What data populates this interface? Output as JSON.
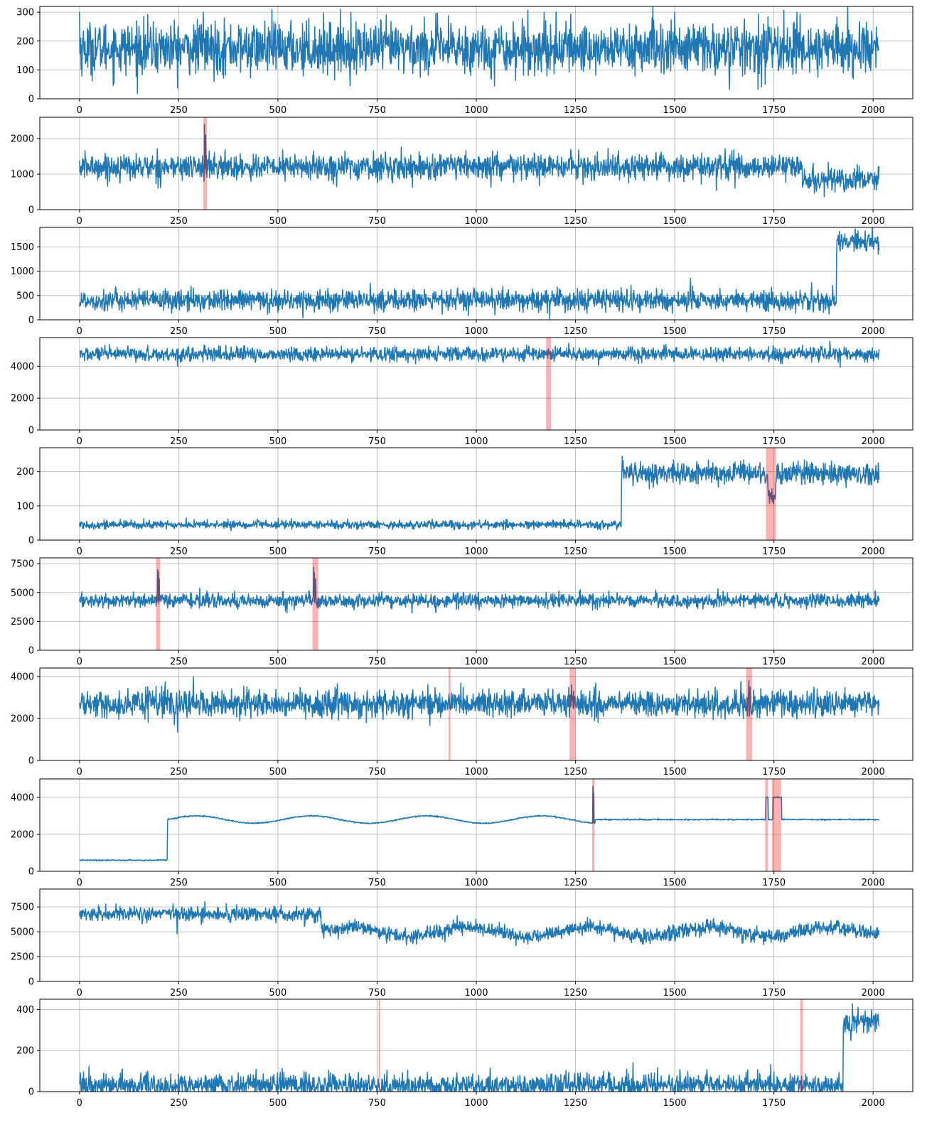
{
  "chart_data": [
    {
      "type": "line",
      "series": [
        {
          "values_spec": {
            "n": 2016,
            "base": 175,
            "noise": 45,
            "spikes": [
              [
                0,
                300
              ],
              [
                312,
                300
              ],
              [
                1171,
                300
              ],
              [
                1500,
                300
              ],
              [
                1808,
                300
              ]
            ]
          }
        }
      ],
      "xlim": [
        -100,
        2100
      ],
      "ylim": [
        0,
        320
      ],
      "xticks": [
        0,
        250,
        500,
        750,
        1000,
        1250,
        1500,
        1750,
        2000
      ],
      "yticks": [
        0,
        100,
        200,
        300
      ],
      "anomalies": []
    },
    {
      "type": "line",
      "series": [
        {
          "values_spec": {
            "n": 2016,
            "segments": [
              [
                0,
                1820,
                1200
              ],
              [
                1820,
                2016,
                850
              ]
            ],
            "noise": 180,
            "spikes": [
              [
                315,
                2400
              ],
              [
                318,
                2100
              ]
            ]
          }
        }
      ],
      "xlim": [
        -100,
        2100
      ],
      "ylim": [
        0,
        2600
      ],
      "xticks": [
        0,
        250,
        500,
        750,
        1000,
        1250,
        1500,
        1750,
        2000
      ],
      "yticks": [
        0,
        1000,
        2000
      ],
      "anomalies": [
        [
          312,
          321
        ]
      ]
    },
    {
      "type": "line",
      "series": [
        {
          "values_spec": {
            "n": 2016,
            "segments": [
              [
                0,
                1908,
                400
              ],
              [
                1908,
                2016,
                1600
              ]
            ],
            "noise": 110,
            "spikes": []
          }
        }
      ],
      "xlim": [
        -100,
        2100
      ],
      "ylim": [
        0,
        1900
      ],
      "xticks": [
        0,
        250,
        500,
        750,
        1000,
        1250,
        1500,
        1750,
        2000
      ],
      "yticks": [
        0,
        500,
        1000,
        1500
      ],
      "anomalies": []
    },
    {
      "type": "line",
      "series": [
        {
          "values_spec": {
            "n": 2016,
            "base": 4750,
            "noise": 220,
            "spikes": [
              [
                1182,
                5100
              ]
            ]
          }
        }
      ],
      "xlim": [
        -100,
        2100
      ],
      "ylim": [
        0,
        5800
      ],
      "xticks": [
        0,
        250,
        500,
        750,
        1000,
        1250,
        1500,
        1750,
        2000
      ],
      "yticks": [
        0,
        2000,
        4000
      ],
      "anomalies": [
        [
          1176,
          1188
        ]
      ]
    },
    {
      "type": "line",
      "series": [
        {
          "values_spec": {
            "n": 2016,
            "segments": [
              [
                0,
                1366,
                45
              ],
              [
                1366,
                2016,
                195
              ],
              [
                1735,
                1755,
                130
              ]
            ],
            "noise": 6,
            "noise2": [
              1366,
              16
            ],
            "spikes": [
              [
                1368,
                245
              ]
            ]
          }
        }
      ],
      "xlim": [
        -100,
        2100
      ],
      "ylim": [
        0,
        270
      ],
      "xticks": [
        0,
        250,
        500,
        750,
        1000,
        1250,
        1500,
        1750,
        2000
      ],
      "yticks": [
        0,
        100,
        200
      ],
      "anomalies": [
        [
          1730,
          1755
        ]
      ]
    },
    {
      "type": "line",
      "series": [
        {
          "values_spec": {
            "n": 2016,
            "base": 4300,
            "noise": 300,
            "spikes": [
              [
                197,
                7000
              ],
              [
                199,
                6800
              ],
              [
                201,
                6200
              ],
              [
                590,
                7200
              ],
              [
                592,
                6700
              ],
              [
                595,
                6200
              ]
            ]
          }
        }
      ],
      "xlim": [
        -100,
        2100
      ],
      "ylim": [
        0,
        8000
      ],
      "xticks": [
        0,
        250,
        500,
        750,
        1000,
        1250,
        1500,
        1750,
        2000
      ],
      "yticks": [
        0,
        2500,
        5000,
        7500
      ],
      "anomalies": [
        [
          193,
          203
        ],
        [
          587,
          602
        ]
      ]
    },
    {
      "type": "line",
      "series": [
        {
          "values_spec": {
            "n": 2016,
            "base": 2700,
            "noise": 320,
            "spikes": [
              [
                1240,
                3600
              ],
              [
                1245,
                3300
              ],
              [
                1687,
                3800
              ],
              [
                1690,
                3500
              ]
            ]
          }
        }
      ],
      "xlim": [
        -100,
        2100
      ],
      "ylim": [
        0,
        4400
      ],
      "xticks": [
        0,
        250,
        500,
        750,
        1000,
        1250,
        1500,
        1750,
        2000
      ],
      "yticks": [
        0,
        2000,
        4000
      ],
      "anomalies": [
        [
          930,
          935
        ],
        [
          1235,
          1250
        ],
        [
          1680,
          1695
        ]
      ]
    },
    {
      "type": "line",
      "series": [
        {
          "values_spec": {
            "n": 2016,
            "segments": [
              [
                0,
                222,
                600
              ],
              [
                222,
                2016,
                2800
              ]
            ],
            "wave": [
              222,
              1300,
              200,
              290
            ],
            "noise": 18,
            "plateaus": [
              [
                1730,
                1736,
                4000
              ],
              [
                1748,
                1770,
                4000
              ]
            ],
            "spikes": [
              [
                1294,
                4600
              ],
              [
                1296,
                4200
              ]
            ]
          }
        }
      ],
      "xlim": [
        -100,
        2100
      ],
      "ylim": [
        0,
        5000
      ],
      "xticks": [
        0,
        250,
        500,
        750,
        1000,
        1250,
        1500,
        1750,
        2000
      ],
      "yticks": [
        0,
        2000,
        4000
      ],
      "anomalies": [
        [
          1292,
          1298
        ],
        [
          1728,
          1735
        ],
        [
          1745,
          1768
        ]
      ]
    },
    {
      "type": "line",
      "series": [
        {
          "values_spec": {
            "n": 2016,
            "segments": [
              [
                0,
                610,
                6800
              ],
              [
                610,
                2016,
                5000
              ]
            ],
            "wave": [
              610,
              2016,
              450,
              300
            ],
            "noise": 360,
            "spikes": [
              [
                246,
                4800
              ]
            ]
          }
        }
      ],
      "xlim": [
        -100,
        2100
      ],
      "ylim": [
        0,
        9300
      ],
      "xticks": [
        0,
        250,
        500,
        750,
        1000,
        1250,
        1500,
        1750,
        2000
      ],
      "yticks": [
        0,
        2500,
        5000,
        7500
      ],
      "anomalies": []
    },
    {
      "type": "line",
      "series": [
        {
          "values_spec": {
            "n": 2016,
            "segments": [
              [
                0,
                1925,
                30
              ],
              [
                1925,
                2016,
                340
              ]
            ],
            "noise": 28,
            "clip0": true,
            "spikes": [
              [
                1395,
                140
              ]
            ]
          }
        }
      ],
      "xlim": [
        -100,
        2100
      ],
      "ylim": [
        0,
        450
      ],
      "xticks": [
        0,
        250,
        500,
        750,
        1000,
        1250,
        1500,
        1750,
        2000
      ],
      "yticks": [
        0,
        200,
        400
      ],
      "anomalies": [
        [
          754,
          758
        ],
        [
          1816,
          1823
        ]
      ]
    }
  ],
  "style": {
    "line_color": "#1f77b4",
    "anomaly_color": "#ff0000",
    "grid_color": "#b0b0b0"
  }
}
